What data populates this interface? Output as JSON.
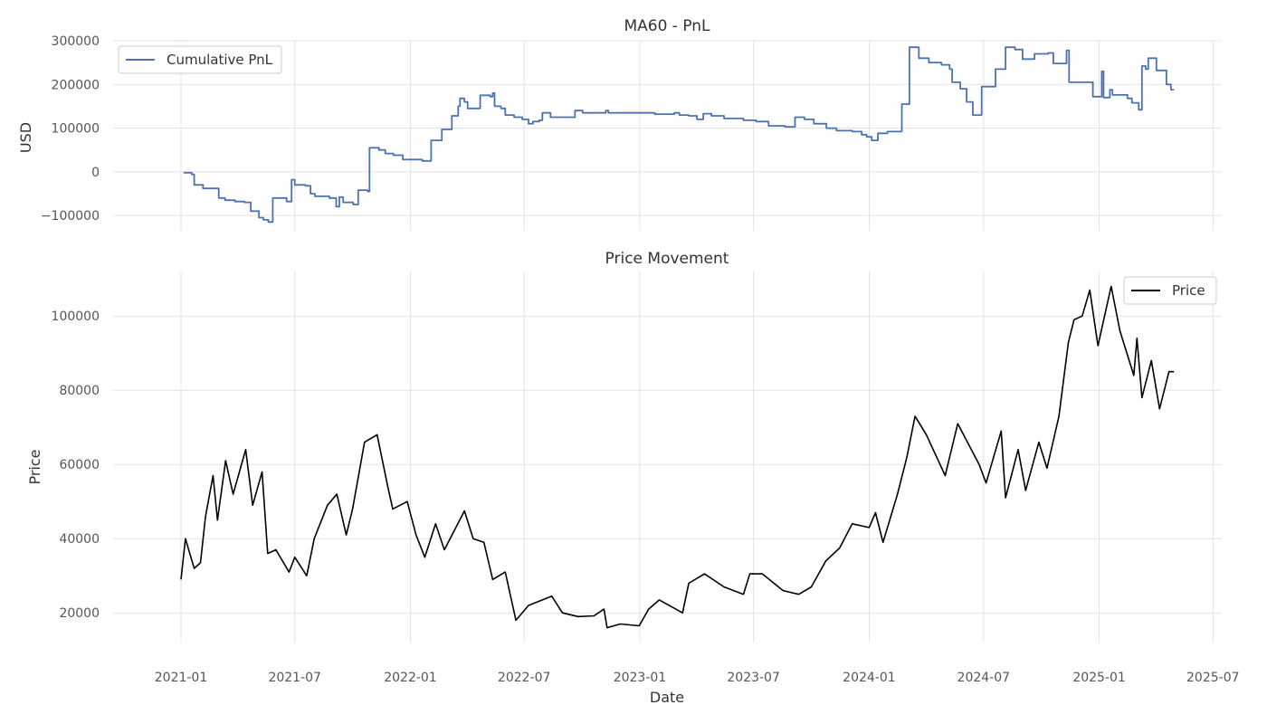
{
  "chart_data": [
    {
      "type": "line",
      "title": "MA60 - PnL",
      "ylabel": "USD",
      "xlabel": "",
      "ylim": [
        -135000,
        300000
      ],
      "yticks": [
        300000,
        200000,
        100000,
        0,
        -100000
      ],
      "ytick_labels": [
        "300000",
        "200000",
        "100000",
        "0",
        "−100000"
      ],
      "grid": true,
      "legend": "top-left",
      "step": true,
      "series": [
        {
          "name": "Cumulative PnL",
          "color": "#4c72b0",
          "points": [
            [
              "2021-01-05",
              -2000
            ],
            [
              "2021-01-18",
              -6000
            ],
            [
              "2021-01-22",
              -30000
            ],
            [
              "2021-02-05",
              -38000
            ],
            [
              "2021-03-02",
              -60000
            ],
            [
              "2021-03-12",
              -65000
            ],
            [
              "2021-03-28",
              -68000
            ],
            [
              "2021-04-12",
              -70000
            ],
            [
              "2021-04-22",
              -90000
            ],
            [
              "2021-05-05",
              -105000
            ],
            [
              "2021-05-12",
              -110000
            ],
            [
              "2021-05-20",
              -115000
            ],
            [
              "2021-05-27",
              -60000
            ],
            [
              "2021-06-10",
              -60000
            ],
            [
              "2021-06-18",
              -68000
            ],
            [
              "2021-06-26",
              -18000
            ],
            [
              "2021-07-01",
              -30000
            ],
            [
              "2021-07-18",
              -32000
            ],
            [
              "2021-07-26",
              -50000
            ],
            [
              "2021-08-02",
              -56000
            ],
            [
              "2021-08-14",
              -56000
            ],
            [
              "2021-08-25",
              -60000
            ],
            [
              "2021-09-05",
              -80000
            ],
            [
              "2021-09-10",
              -58000
            ],
            [
              "2021-09-16",
              -70000
            ],
            [
              "2021-10-02",
              -75000
            ],
            [
              "2021-10-10",
              -42000
            ],
            [
              "2021-10-25",
              -45000
            ],
            [
              "2021-10-28",
              55000
            ],
            [
              "2021-11-12",
              50000
            ],
            [
              "2021-11-22",
              42000
            ],
            [
              "2021-12-05",
              38000
            ],
            [
              "2021-12-20",
              28000
            ],
            [
              "2022-01-10",
              28000
            ],
            [
              "2022-01-20",
              25000
            ],
            [
              "2022-02-03",
              72000
            ],
            [
              "2022-02-20",
              97000
            ],
            [
              "2022-03-08",
              128000
            ],
            [
              "2022-03-18",
              150000
            ],
            [
              "2022-03-21",
              168000
            ],
            [
              "2022-03-28",
              160000
            ],
            [
              "2022-04-02",
              145000
            ],
            [
              "2022-04-18",
              145000
            ],
            [
              "2022-04-22",
              175000
            ],
            [
              "2022-05-08",
              172000
            ],
            [
              "2022-05-12",
              180000
            ],
            [
              "2022-05-15",
              150000
            ],
            [
              "2022-05-25",
              145000
            ],
            [
              "2022-06-01",
              130000
            ],
            [
              "2022-06-15",
              125000
            ],
            [
              "2022-06-28",
              120000
            ],
            [
              "2022-07-08",
              110000
            ],
            [
              "2022-07-15",
              115000
            ],
            [
              "2022-07-25",
              118000
            ],
            [
              "2022-07-30",
              135000
            ],
            [
              "2022-08-12",
              125000
            ],
            [
              "2022-08-28",
              125000
            ],
            [
              "2022-09-20",
              140000
            ],
            [
              "2022-10-02",
              135000
            ],
            [
              "2022-11-01",
              135000
            ],
            [
              "2022-11-08",
              140000
            ],
            [
              "2022-11-12",
              135000
            ],
            [
              "2023-01-10",
              135000
            ],
            [
              "2023-01-25",
              132000
            ],
            [
              "2023-02-25",
              135000
            ],
            [
              "2023-03-05",
              130000
            ],
            [
              "2023-03-20",
              128000
            ],
            [
              "2023-04-02",
              120000
            ],
            [
              "2023-04-12",
              133000
            ],
            [
              "2023-04-25",
              128000
            ],
            [
              "2023-05-15",
              122000
            ],
            [
              "2023-06-15",
              118000
            ],
            [
              "2023-07-05",
              115000
            ],
            [
              "2023-07-25",
              105000
            ],
            [
              "2023-08-20",
              103000
            ],
            [
              "2023-09-05",
              125000
            ],
            [
              "2023-09-20",
              120000
            ],
            [
              "2023-10-05",
              110000
            ],
            [
              "2023-10-25",
              100000
            ],
            [
              "2023-11-10",
              94000
            ],
            [
              "2023-12-05",
              92000
            ],
            [
              "2023-12-20",
              85000
            ],
            [
              "2023-12-28",
              80000
            ],
            [
              "2024-01-05",
              72000
            ],
            [
              "2024-01-15",
              88000
            ],
            [
              "2024-01-30",
              92000
            ],
            [
              "2024-02-22",
              155000
            ],
            [
              "2024-03-05",
              285000
            ],
            [
              "2024-03-20",
              260000
            ],
            [
              "2024-04-05",
              250000
            ],
            [
              "2024-04-25",
              245000
            ],
            [
              "2024-05-08",
              235000
            ],
            [
              "2024-05-12",
              205000
            ],
            [
              "2024-05-25",
              190000
            ],
            [
              "2024-06-04",
              160000
            ],
            [
              "2024-06-14",
              130000
            ],
            [
              "2024-06-28",
              195000
            ],
            [
              "2024-07-20",
              235000
            ],
            [
              "2024-08-05",
              285000
            ],
            [
              "2024-08-20",
              280000
            ],
            [
              "2024-09-01",
              258000
            ],
            [
              "2024-09-20",
              270000
            ],
            [
              "2024-10-12",
              272000
            ],
            [
              "2024-10-20",
              248000
            ],
            [
              "2024-11-10",
              278000
            ],
            [
              "2024-11-14",
              205000
            ],
            [
              "2024-12-15",
              205000
            ],
            [
              "2024-12-22",
              172000
            ],
            [
              "2025-01-05",
              230000
            ],
            [
              "2025-01-08",
              170000
            ],
            [
              "2025-01-18",
              188000
            ],
            [
              "2025-01-22",
              176000
            ],
            [
              "2025-02-15",
              168000
            ],
            [
              "2025-02-22",
              158000
            ],
            [
              "2025-03-05",
              142000
            ],
            [
              "2025-03-10",
              242000
            ],
            [
              "2025-03-16",
              235000
            ],
            [
              "2025-03-20",
              260000
            ],
            [
              "2025-04-02",
              232000
            ],
            [
              "2025-04-18",
              200000
            ],
            [
              "2025-04-25",
              188000
            ],
            [
              "2025-04-30",
              188000
            ]
          ]
        }
      ]
    },
    {
      "type": "line",
      "title": "Price Movement",
      "ylabel": "Price",
      "xlabel": "Date",
      "ylim": [
        12000,
        112000
      ],
      "yticks": [
        100000,
        80000,
        60000,
        40000,
        20000
      ],
      "ytick_labels": [
        "100000",
        "80000",
        "60000",
        "40000",
        "20000"
      ],
      "grid": true,
      "legend": "top-right",
      "series": [
        {
          "name": "Price",
          "color": "#000000",
          "points": [
            [
              "2021-01-01",
              29000
            ],
            [
              "2021-01-08",
              40000
            ],
            [
              "2021-01-15",
              36000
            ],
            [
              "2021-01-22",
              32000
            ],
            [
              "2021-02-01",
              33500
            ],
            [
              "2021-02-09",
              46000
            ],
            [
              "2021-02-21",
              57000
            ],
            [
              "2021-02-28",
              45000
            ],
            [
              "2021-03-13",
              61000
            ],
            [
              "2021-03-25",
              52000
            ],
            [
              "2021-04-14",
              64000
            ],
            [
              "2021-04-25",
              49000
            ],
            [
              "2021-05-10",
              58000
            ],
            [
              "2021-05-19",
              36000
            ],
            [
              "2021-06-01",
              37000
            ],
            [
              "2021-06-22",
              31000
            ],
            [
              "2021-07-01",
              35000
            ],
            [
              "2021-07-20",
              30000
            ],
            [
              "2021-08-01",
              40000
            ],
            [
              "2021-08-22",
              49000
            ],
            [
              "2021-09-06",
              52000
            ],
            [
              "2021-09-21",
              41000
            ],
            [
              "2021-10-01",
              48000
            ],
            [
              "2021-10-20",
              66000
            ],
            [
              "2021-11-09",
              68000
            ],
            [
              "2021-11-26",
              54000
            ],
            [
              "2021-12-04",
              48000
            ],
            [
              "2021-12-27",
              50000
            ],
            [
              "2022-01-10",
              41000
            ],
            [
              "2022-01-24",
              35000
            ],
            [
              "2022-02-10",
              44000
            ],
            [
              "2022-02-24",
              37000
            ],
            [
              "2022-03-28",
              47500
            ],
            [
              "2022-04-11",
              40000
            ],
            [
              "2022-04-28",
              39000
            ],
            [
              "2022-05-12",
              29000
            ],
            [
              "2022-06-01",
              31000
            ],
            [
              "2022-06-18",
              18000
            ],
            [
              "2022-07-08",
              22000
            ],
            [
              "2022-08-14",
              24500
            ],
            [
              "2022-08-31",
              20000
            ],
            [
              "2022-09-25",
              19000
            ],
            [
              "2022-10-20",
              19200
            ],
            [
              "2022-11-05",
              21000
            ],
            [
              "2022-11-10",
              16000
            ],
            [
              "2022-12-01",
              17000
            ],
            [
              "2022-12-31",
              16500
            ],
            [
              "2023-01-15",
              21000
            ],
            [
              "2023-02-01",
              23500
            ],
            [
              "2023-03-10",
              20000
            ],
            [
              "2023-03-20",
              28000
            ],
            [
              "2023-04-14",
              30500
            ],
            [
              "2023-05-15",
              27000
            ],
            [
              "2023-06-15",
              25000
            ],
            [
              "2023-06-25",
              30500
            ],
            [
              "2023-07-15",
              30500
            ],
            [
              "2023-08-17",
              26000
            ],
            [
              "2023-09-11",
              25000
            ],
            [
              "2023-10-01",
              27000
            ],
            [
              "2023-10-24",
              34000
            ],
            [
              "2023-11-15",
              37500
            ],
            [
              "2023-12-05",
              44000
            ],
            [
              "2024-01-01",
              43000
            ],
            [
              "2024-01-11",
              47000
            ],
            [
              "2024-01-23",
              39000
            ],
            [
              "2024-02-15",
              52000
            ],
            [
              "2024-03-01",
              62000
            ],
            [
              "2024-03-14",
              73000
            ],
            [
              "2024-04-01",
              68000
            ],
            [
              "2024-05-01",
              57000
            ],
            [
              "2024-05-21",
              71000
            ],
            [
              "2024-06-24",
              60000
            ],
            [
              "2024-07-05",
              55000
            ],
            [
              "2024-07-29",
              69000
            ],
            [
              "2024-08-05",
              51000
            ],
            [
              "2024-08-25",
              64000
            ],
            [
              "2024-09-06",
              53000
            ],
            [
              "2024-09-27",
              66000
            ],
            [
              "2024-10-10",
              59000
            ],
            [
              "2024-10-29",
              73000
            ],
            [
              "2024-11-13",
              93000
            ],
            [
              "2024-11-22",
              99000
            ],
            [
              "2024-12-05",
              100000
            ],
            [
              "2024-12-17",
              107000
            ],
            [
              "2024-12-30",
              92000
            ],
            [
              "2025-01-20",
              108000
            ],
            [
              "2025-02-03",
              96000
            ],
            [
              "2025-02-25",
              84000
            ],
            [
              "2025-03-02",
              94000
            ],
            [
              "2025-03-10",
              78000
            ],
            [
              "2025-03-25",
              88000
            ],
            [
              "2025-04-07",
              75000
            ],
            [
              "2025-04-22",
              85000
            ],
            [
              "2025-04-30",
              85000
            ]
          ]
        }
      ]
    }
  ],
  "x_axis": {
    "range": [
      "2020-09-15",
      "2025-07-15"
    ],
    "ticks": [
      "2021-01-01",
      "2021-07-01",
      "2022-01-01",
      "2022-07-01",
      "2023-01-01",
      "2023-07-01",
      "2024-01-01",
      "2024-07-01",
      "2025-01-01",
      "2025-07-01"
    ],
    "tick_labels": [
      "2021-01",
      "2021-07",
      "2022-01",
      "2022-07",
      "2023-01",
      "2023-07",
      "2024-01",
      "2024-07",
      "2025-01",
      "2025-07"
    ]
  }
}
